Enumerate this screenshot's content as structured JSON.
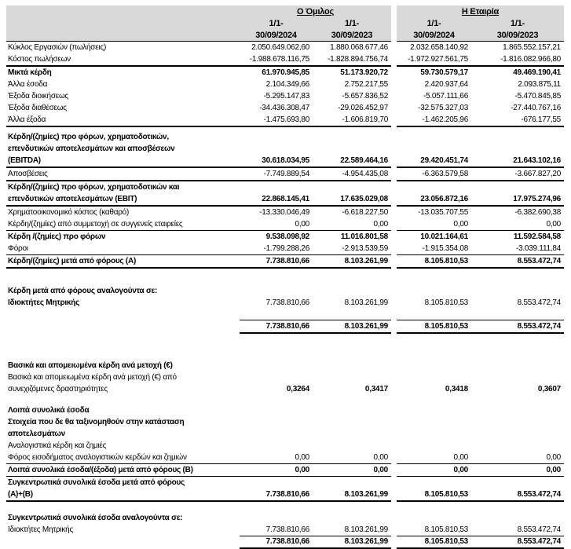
{
  "header": {
    "group_company": "Ο Όμιλος",
    "group_parent": "Η Εταιρία",
    "columns": [
      {
        "line1": "1/1-",
        "line2": "30/09/2024"
      },
      {
        "line1": "1/1-",
        "line2": "30/09/2023"
      },
      {
        "line1": "1/1-",
        "line2": "30/09/2024"
      },
      {
        "line1": "1/1-",
        "line2": "30/09/2023"
      }
    ]
  },
  "rows": [
    {
      "label": [
        "Κύκλος Εργασιών (πωλήσεις)"
      ],
      "values": [
        "2.050.649.062,60",
        "1.880.068.677,46",
        "2.032.658.140,92",
        "1.865.552.157,21"
      ]
    },
    {
      "label": [
        "Κόστος πωλήσεων"
      ],
      "values": [
        "-1.988.678.116,75",
        "-1.828.894.756,74",
        "-1.972.927.561,75",
        "-1.816.082.966,80"
      ]
    },
    {
      "label": [
        "Μικτά κέρδη"
      ],
      "values": [
        "61.970.945,85",
        "51.173.920,72",
        "59.730.579,17",
        "49.469.190,41"
      ]
    },
    {
      "label": [
        "Άλλα έσοδα"
      ],
      "values": [
        "2.104.349,66",
        "2.752.217,55",
        "2.420.937,64",
        "2.093.875,11"
      ]
    },
    {
      "label": [
        "Έξοδα διοικήσεως"
      ],
      "values": [
        "-5.295.147,83",
        "-5.657.836,52",
        "-5.057.111,66",
        "-5.470.845,85"
      ]
    },
    {
      "label": [
        "Έξοδα διαθέσεως"
      ],
      "values": [
        "-34.436.308,47",
        "-29.026.452,97",
        "-32.575.327,03",
        "-27.440.767,16"
      ]
    },
    {
      "label": [
        "Άλλα έξοδα"
      ],
      "values": [
        "-1.475.693,80",
        "-1.606.819,70",
        "-1.462.205,96",
        "-676.177,55"
      ]
    },
    {
      "label": [
        "Κέρδη/(ζημίες) προ φόρων, χρηματοδοτικών,",
        "επενδυτικών αποτελεσμάτων και αποσβέσεων",
        "(EBITDA)"
      ],
      "values": [
        "30.618.034,95",
        "22.589.464,16",
        "29.420.451,74",
        "21.643.102,16"
      ]
    },
    {
      "label": [
        "Αποσβέσεις"
      ],
      "values": [
        "-7.749.889,54",
        "-4.954.435,08",
        "-6.363.579,58",
        "-3.667.827,20"
      ]
    },
    {
      "label": [
        "Κέρδη/(ζημίες) προ φόρων, χρηματοδοτικών και",
        "επενδυτικών αποτελεσμάτων (EBIT)"
      ],
      "values": [
        "22.868.145,41",
        "17.635.029,08",
        "23.056.872,16",
        "17.975.274,96"
      ]
    },
    {
      "label": [
        "Χρηματοοικονομικό κόστος (καθαρό)"
      ],
      "values": [
        "-13.330.046,49",
        "-6.618.227,50",
        "-13.035.707,55",
        "-6.382.690,38"
      ]
    },
    {
      "label": [
        "Κέρδη/(ζημίες) από συμμετοχή σε συγγενείς εταιρείες"
      ],
      "values": [
        "0,00",
        "0,00",
        "0,00",
        "0,00"
      ]
    },
    {
      "label": [
        "Κέρδη /(ζημίες) προ φόρων"
      ],
      "values": [
        "9.538.098,92",
        "11.016.801,58",
        "10.021.164,61",
        "11.592.584,58"
      ]
    },
    {
      "label": [
        "Φόροι"
      ],
      "values": [
        "-1.799.288,26",
        "-2.913.539,59",
        "-1.915.354,08",
        "-3.039.111,84"
      ]
    },
    {
      "label": [
        "Κέρδη/(ζημίες) μετά από φόρους (Α)"
      ],
      "values": [
        "7.738.810,66",
        "8.103.261,99",
        "8.105.810,53",
        "8.553.472,74"
      ]
    },
    {
      "label": [],
      "values": []
    },
    {
      "label": [
        "Κέρδη μετά από φόρους αναλογούντα σε:"
      ],
      "values": []
    },
    {
      "label": [
        "Ιδιοκτήτες Μητρικής"
      ],
      "values": [
        "7.738.810,66",
        "8.103.261,99",
        "8.105.810,53",
        "8.553.472,74"
      ]
    },
    {
      "label": [],
      "values": []
    },
    {
      "label": [],
      "values": [
        "7.738.810,66",
        "8.103.261,99",
        "8.105.810,53",
        "8.553.472,74"
      ]
    },
    {
      "label": [],
      "values": []
    },
    {
      "label": [
        "Βασικά και απομειωμένα κέρδη ανά μετοχή (€)"
      ],
      "values": []
    },
    {
      "label": [
        "Βασικά και απομειωμένα κέρδη ανά μετοχή (€) από",
        "συνεχιζόμενες δραστηριότητες"
      ],
      "values": [
        "0,3264",
        "0,3417",
        "0,3418",
        "0,3607"
      ]
    },
    {
      "label": [],
      "values": []
    },
    {
      "label": [
        "Λοιπά συνολικά έσοδα"
      ],
      "values": []
    },
    {
      "label": [
        "Στοιχεία που δε θα ταξινομηθούν στην κατάσταση",
        "αποτελεσμάτων"
      ],
      "values": []
    },
    {
      "label": [
        "Αναλογιστικά κέρδη και ζημιές"
      ],
      "values": []
    },
    {
      "label": [
        "Φόρος εισοδήματος αναλογιστικών κερδών και ζημιών"
      ],
      "values": [
        "0,00",
        "0,00",
        "0,00",
        "0,00"
      ]
    },
    {
      "label": [
        "Λοιπά συνολικά έσοδα/(έξοδα) μετά από φόρους (Β)"
      ],
      "values": [
        "0,00",
        "0,00",
        "0,00",
        "0,00"
      ]
    },
    {
      "label": [
        "Συγκεντρωτικά συνολικά έσοδα μετά από φόρους",
        "(Α)+(Β)"
      ],
      "values": [
        "7.738.810,66",
        "8.103.261,99",
        "8.105.810,53",
        "8.553.472,74"
      ]
    },
    {
      "label": [],
      "values": []
    },
    {
      "label": [
        "Συγκεντρωτικά συνολικά έσοδα αναλογούντα σε:"
      ],
      "values": []
    },
    {
      "label": [
        "Ιδιοκτήτες Μητρικής"
      ],
      "values": [
        "7.738.810,66",
        "8.103.261,99",
        "8.105.810,53",
        "8.553.472,74"
      ]
    },
    {
      "label": [],
      "values": [
        "7.738.810,66",
        "8.103.261,99",
        "8.105.810,53",
        "8.553.472,74"
      ]
    }
  ]
}
